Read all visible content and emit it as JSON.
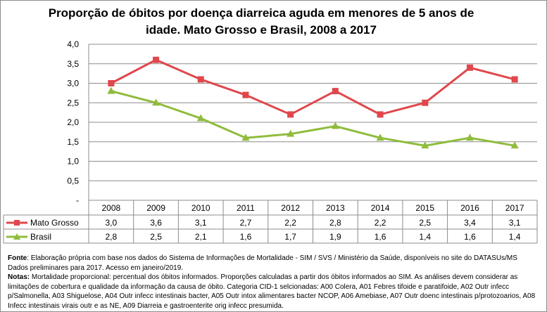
{
  "chart_data": {
    "type": "line",
    "title": "Proporção de óbitos por doença diarreica aguda em menores de 5 anos de idade. Mato Grosso e Brasil, 2008 a 2017",
    "categories": [
      "2008",
      "2009",
      "2010",
      "2011",
      "2012",
      "2013",
      "2014",
      "2015",
      "2016",
      "2017"
    ],
    "series": [
      {
        "name": "Mato Grosso",
        "color": "#e0474c",
        "marker": "square",
        "values": [
          3.0,
          3.6,
          3.1,
          2.7,
          2.2,
          2.8,
          2.2,
          2.5,
          3.4,
          3.1
        ],
        "labels": [
          "3,0",
          "3,6",
          "3,1",
          "2,7",
          "2,2",
          "2,8",
          "2,2",
          "2,5",
          "3,4",
          "3,1"
        ]
      },
      {
        "name": "Brasil",
        "color": "#8fbc3c",
        "marker": "triangle",
        "values": [
          2.8,
          2.5,
          2.1,
          1.6,
          1.7,
          1.9,
          1.6,
          1.4,
          1.6,
          1.4
        ],
        "labels": [
          "2,8",
          "2,5",
          "2,1",
          "1,6",
          "1,7",
          "1,9",
          "1,6",
          "1,4",
          "1,6",
          "1,4"
        ]
      }
    ],
    "ylim": [
      0,
      4
    ],
    "yticks": [
      "-",
      "0,5",
      "1,0",
      "1,5",
      "2,0",
      "2,5",
      "3,0",
      "3,5",
      "4,0"
    ],
    "grid": true,
    "legend": "data-table"
  },
  "notes": {
    "fonte_label": "Fonte",
    "fonte_text": ": Elaboração própria com base nos dados do Sistema de Informações de Mortalidade - SIM / SVS / Ministério da Saúde, disponíveis no site do DATASUs/MS",
    "fonte_text2": "Dados preliminares para 2017. Acesso em janeiro/2019.",
    "notas_label": "Notas:",
    "notas_text": " Mortalidade proporcional: percentual dos óbitos informados. Proporções calculadas a partir dos óbitos informados ao SIM. As análises devem considerar as limitações de cobertura e qualidade da informação da causa de óbito. Categoria CID-1 selcionadas: A00 Colera, A01 Febres tifoide e paratifoide, A02 Outr infecc p/Salmonella, A03 Shiguelose, A04 Outr infecc intestinais bacter, A05 Outr intox alimentares bacter NCOP, A06 Amebiase, A07 Outr doenc intestinais p/protozoarios, A08 Infecc intestinais virais outr e as NE, A09 Diarreia e gastroenterite orig infecc presumida."
  }
}
